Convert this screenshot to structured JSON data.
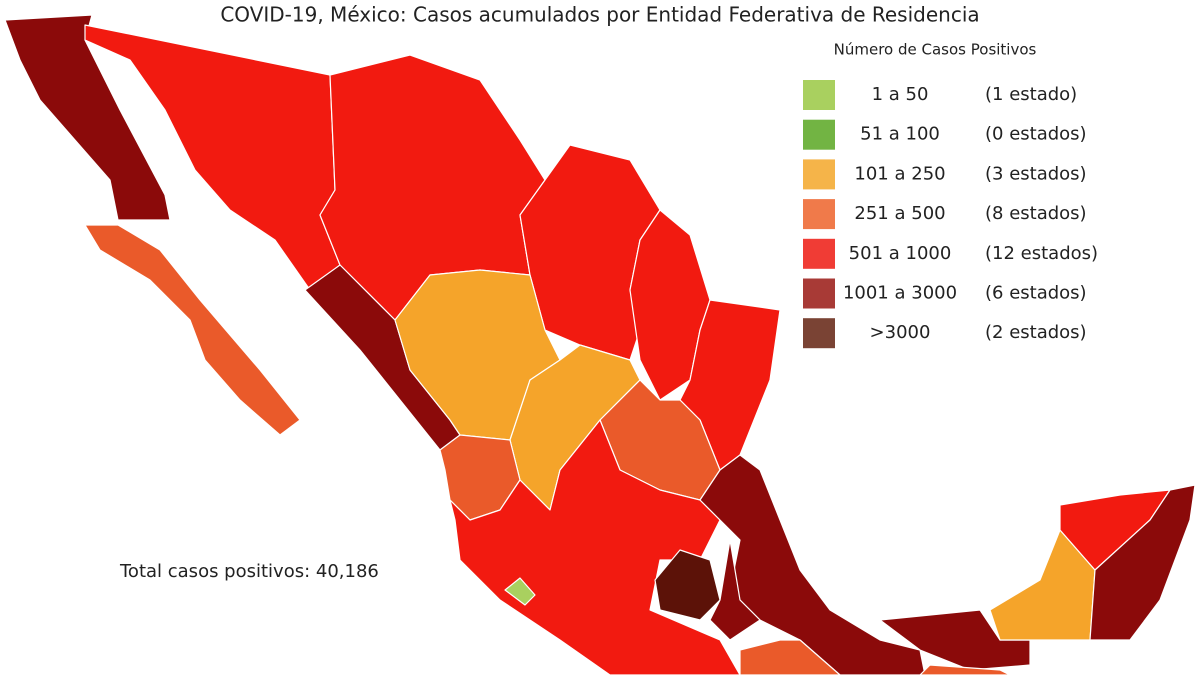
{
  "title": "COVID-19, México: Casos acumulados por Entidad Federativa de Residencia",
  "legend": {
    "title": "Número de Casos Positivos",
    "items": [
      {
        "range": "1 a 50",
        "count": "(1 estado)",
        "color": "#a9d05f"
      },
      {
        "range": "51 a 100",
        "count": "(0 estados)",
        "color": "#72b443"
      },
      {
        "range": "101 a 250",
        "count": "(3 estados)",
        "color": "#f5b449"
      },
      {
        "range": "251 a 500",
        "count": "(8 estados)",
        "color": "#f07a4a"
      },
      {
        "range": "501 a 1000",
        "count": "(12 estados)",
        "color": "#f03c35"
      },
      {
        "range": "1001 a 3000",
        "count": "(6 estados)",
        "color": "#a83a36"
      },
      {
        "range": ">3000",
        "count": "(2 estados)",
        "color": "#7a4334"
      }
    ]
  },
  "total": "Total casos positivos: 40,186"
}
